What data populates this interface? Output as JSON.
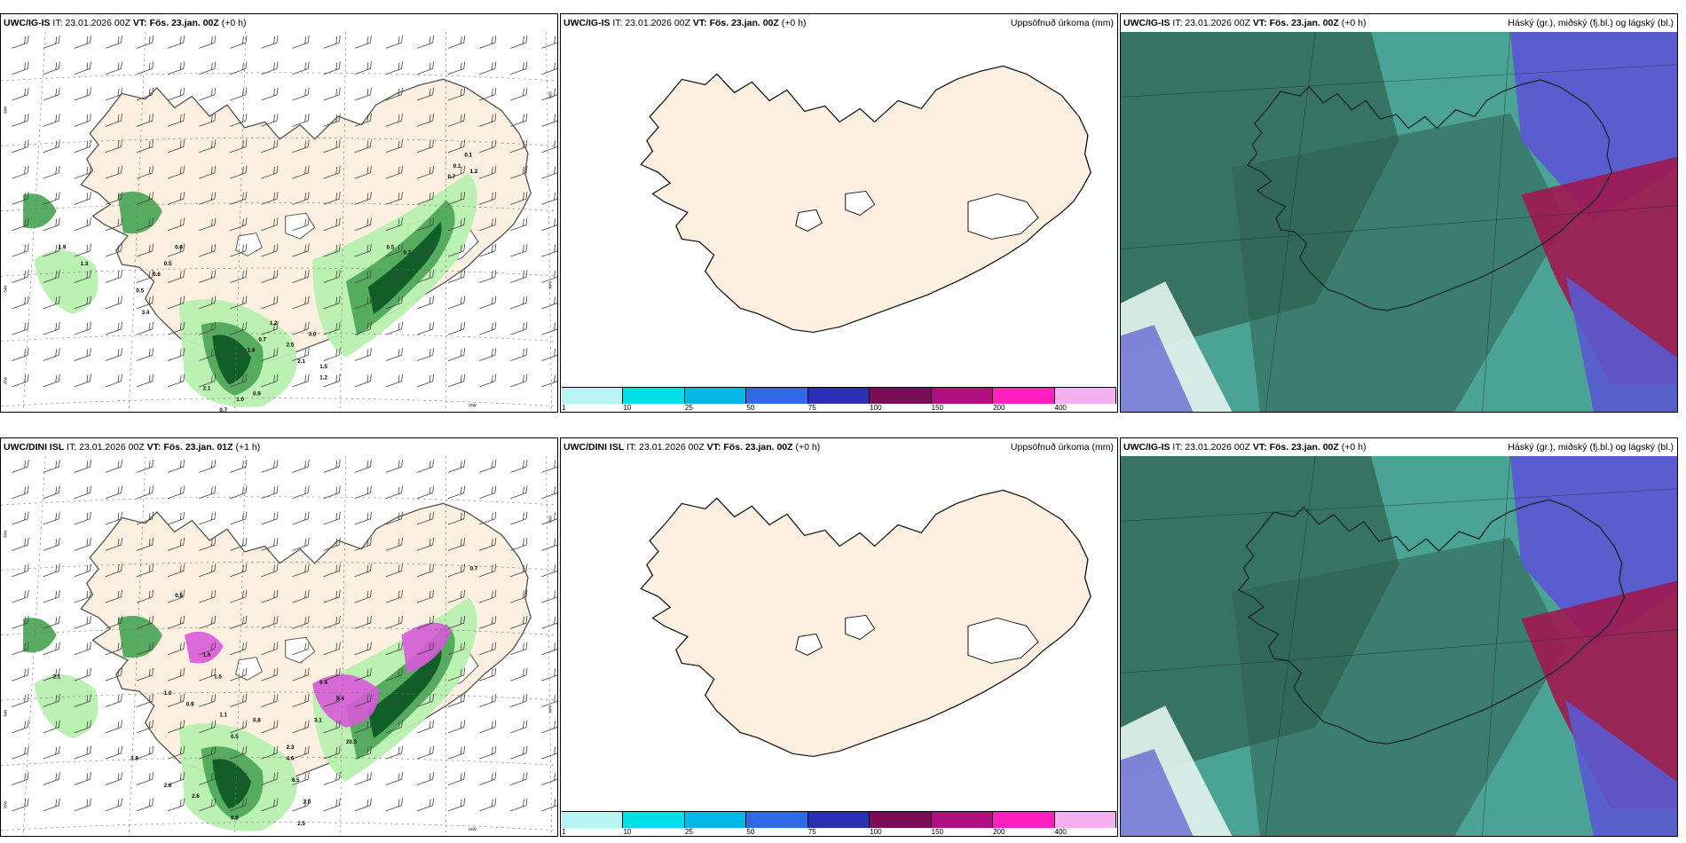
{
  "panels": [
    {
      "model": "UWC/IG-IS",
      "it": "IT: 23.01.2026 00Z",
      "vt_label": "VT:",
      "vt": "Fös. 23.jan. 00Z",
      "lead": "(+0 h)",
      "right": "",
      "values": [
        "0.1",
        "0.1",
        "0.7",
        "1.2",
        "1.9",
        "1.3",
        "0.5",
        "0.7",
        "0.6",
        "0.5",
        "0.6",
        "0.5",
        "3.4",
        "0.7",
        "1.2",
        "1.6",
        "2.5",
        "3.0",
        "2.1",
        "1.5",
        "1.2",
        "0.9",
        "1.0",
        "0.7",
        "2.1"
      ]
    },
    {
      "model": "UWC/IG-IS",
      "it": "IT: 23.01.2026 00Z",
      "vt_label": "VT:",
      "vt": "Fös. 23.jan. 00Z",
      "lead": "(+0 h)",
      "right": "Uppsöfnuð úrkoma (mm)"
    },
    {
      "model": "UWC/IG-IS",
      "it": "IT: 23.01.2026 00Z",
      "vt_label": "VT:",
      "vt": "Fös. 23.jan. 00Z",
      "lead": "(+0 h)",
      "right": "Háský (gr.), miðský (fj.bl.) og lágský (bl.)"
    },
    {
      "model": "UWC/DINI ISL",
      "it": "IT: 23.01.2026 00Z",
      "vt_label": "VT:",
      "vt": "Fös. 23.jan. 01Z",
      "lead": "(+1 h)",
      "right": "",
      "values": [
        "0.5",
        "0.7",
        "2.1",
        "1.6",
        "1.5",
        "1.0",
        "0.9",
        "1.1",
        "0.8",
        "0.5",
        "1.4",
        "3.1",
        "2.3",
        "0.4",
        "4.6",
        "6.5",
        "2.5",
        "3.8",
        "2.6",
        "2.6",
        "0.8",
        "2.5",
        "20.3"
      ]
    },
    {
      "model": "UWC/DINI ISL",
      "it": "IT: 23.01.2026 00Z",
      "vt_label": "VT:",
      "vt": "Fös. 23.jan. 00Z",
      "lead": "(+0 h)",
      "right": "Uppsöfnuð úrkoma (mm)"
    },
    {
      "model": "UWC/IG-IS",
      "it": "IT: 23.01.2026 00Z",
      "vt_label": "VT:",
      "vt": "Fös. 23.jan. 00Z",
      "lead": "(+0 h)",
      "right": "Háský (gr.), miðský (fj.bl.) og lágský (bl.)"
    }
  ],
  "axis_labels": {
    "lat66": "66N",
    "lat64": "64N",
    "lon25": "25W",
    "lon15": "15W"
  },
  "legend": {
    "colors": [
      "#b7f5f5",
      "#00e0e8",
      "#00b7e6",
      "#2f6ae6",
      "#2b2fb5",
      "#7a0d55",
      "#b0107f",
      "#ff1fbf",
      "#f5b0f0"
    ],
    "labels": [
      "1",
      "10",
      "25",
      "50",
      "75",
      "100",
      "150",
      "200",
      "400"
    ]
  },
  "colors": {
    "land": "#fdf0e0",
    "precip_light": "#b8f0b0",
    "precip_mid": "#4fa85a",
    "precip_dark": "#0f5a25",
    "precip_pink": "#d85ad8",
    "cloud_teal": "#4aa394",
    "cloud_dark": "#2f5e4e",
    "cloud_violet": "#5a5ad0",
    "cloud_crimson": "#a01850"
  }
}
